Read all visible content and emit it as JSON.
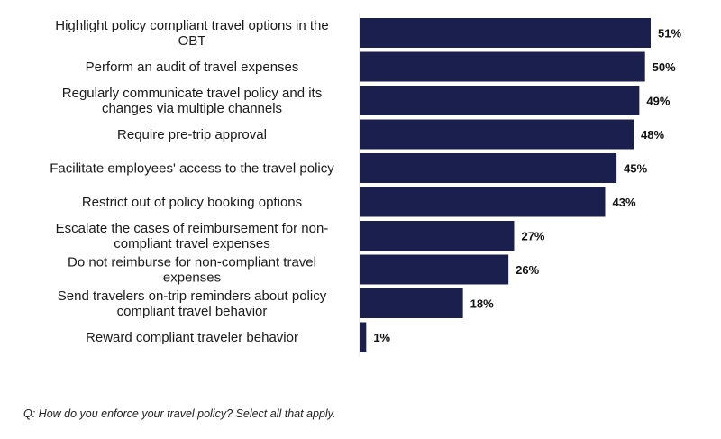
{
  "chart_data": {
    "type": "bar",
    "orientation": "horizontal",
    "categories": [
      [
        "Highlight policy compliant travel options in the",
        "OBT"
      ],
      [
        "Perform an audit of travel expenses"
      ],
      [
        "Regularly communicate travel policy and its",
        "changes via multiple channels"
      ],
      [
        "Require pre-trip approval"
      ],
      [
        "Facilitate employees' access to the travel policy"
      ],
      [
        "Restrict out of policy booking options"
      ],
      [
        "Escalate the cases of reimbursement for non-",
        "compliant travel expenses"
      ],
      [
        "Do not reimburse for non-compliant travel",
        "expenses"
      ],
      [
        "Send travelers on-trip reminders about policy",
        "compliant travel behavior"
      ],
      [
        "Reward compliant traveler behavior"
      ]
    ],
    "values": [
      51,
      50,
      49,
      48,
      45,
      43,
      27,
      26,
      18,
      1
    ],
    "value_labels": [
      "51%",
      "50%",
      "49%",
      "48%",
      "45%",
      "43%",
      "27%",
      "26%",
      "18%",
      "1%"
    ],
    "xlim": [
      0,
      51
    ],
    "bar_color": "#1b1f4e",
    "grid": false,
    "legend": "none"
  },
  "footnote": "Q: How do you enforce your travel policy? Select all that apply."
}
